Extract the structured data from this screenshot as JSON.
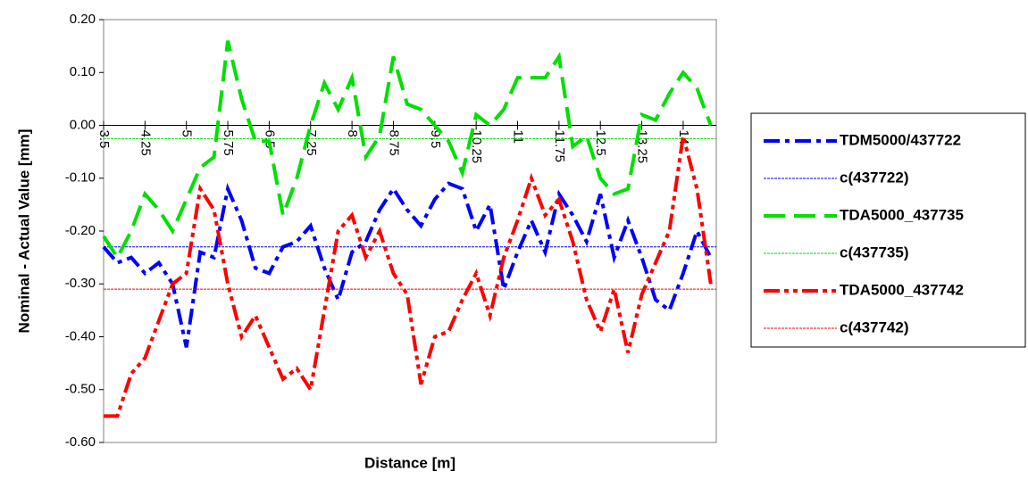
{
  "chart_data": {
    "type": "line",
    "y_label": "Nominal - Actual Value [mm]",
    "x_label": "Distance [m]",
    "x": [
      3.5,
      3.75,
      4.0,
      4.25,
      4.5,
      4.75,
      5.0,
      5.25,
      5.5,
      5.75,
      6.0,
      6.25,
      6.5,
      6.75,
      7.0,
      7.25,
      7.5,
      7.75,
      8.0,
      8.25,
      8.5,
      8.75,
      9.0,
      9.25,
      9.5,
      9.75,
      10.0,
      10.25,
      10.5,
      10.75,
      11.0,
      11.25,
      11.5,
      11.75,
      12.0,
      12.25,
      12.5,
      12.75,
      13.0,
      13.25,
      13.5,
      13.75,
      14.0,
      14.25,
      14.5
    ],
    "series": [
      {
        "name": "TDM5000/437722",
        "color": "#0000ff",
        "linestyle": "dashdot",
        "values": [
          -0.23,
          -0.26,
          -0.25,
          -0.28,
          -0.26,
          -0.3,
          -0.42,
          -0.24,
          -0.25,
          -0.12,
          -0.18,
          -0.27,
          -0.28,
          -0.23,
          -0.22,
          -0.19,
          -0.27,
          -0.33,
          -0.24,
          -0.22,
          -0.16,
          -0.12,
          -0.16,
          -0.19,
          -0.14,
          -0.11,
          -0.12,
          -0.2,
          -0.15,
          -0.31,
          -0.24,
          -0.18,
          -0.24,
          -0.13,
          -0.17,
          -0.22,
          -0.13,
          -0.25,
          -0.18,
          -0.25,
          -0.33,
          -0.35,
          -0.28,
          -0.2,
          -0.25
        ]
      },
      {
        "name": "c(437722)",
        "color": "#0000ff",
        "linestyle": "thin",
        "x": [
          3.5,
          14.6
        ],
        "values": [
          -0.23,
          -0.23
        ]
      },
      {
        "name": "TDA5000_437735",
        "color": "#00e000",
        "linestyle": "dashed",
        "values": [
          -0.21,
          -0.25,
          -0.2,
          -0.13,
          -0.16,
          -0.2,
          -0.14,
          -0.08,
          -0.06,
          0.16,
          0.05,
          -0.03,
          -0.03,
          -0.17,
          -0.1,
          0.0,
          0.08,
          0.03,
          0.09,
          -0.06,
          -0.02,
          0.13,
          0.04,
          0.03,
          0.0,
          -0.03,
          -0.09,
          0.02,
          0.0,
          0.03,
          0.09,
          0.09,
          0.09,
          0.13,
          -0.04,
          -0.02,
          -0.1,
          -0.13,
          -0.12,
          0.02,
          0.01,
          0.06,
          0.1,
          0.07,
          0.0
        ]
      },
      {
        "name": "c(437735)",
        "color": "#00e000",
        "linestyle": "thin",
        "x": [
          3.5,
          14.6
        ],
        "values": [
          -0.025,
          -0.025
        ]
      },
      {
        "name": "TDA5000_437742",
        "color": "#ff0000",
        "linestyle": "dashdotdot",
        "values": [
          -0.55,
          -0.55,
          -0.47,
          -0.44,
          -0.37,
          -0.3,
          -0.28,
          -0.12,
          -0.16,
          -0.3,
          -0.4,
          -0.36,
          -0.42,
          -0.48,
          -0.46,
          -0.5,
          -0.35,
          -0.2,
          -0.17,
          -0.25,
          -0.2,
          -0.28,
          -0.32,
          -0.49,
          -0.4,
          -0.39,
          -0.33,
          -0.28,
          -0.36,
          -0.25,
          -0.18,
          -0.1,
          -0.17,
          -0.14,
          -0.22,
          -0.33,
          -0.39,
          -0.31,
          -0.43,
          -0.32,
          -0.26,
          -0.2,
          -0.02,
          -0.12,
          -0.3
        ]
      },
      {
        "name": "c(437742)",
        "color": "#ff0000",
        "linestyle": "thin",
        "x": [
          3.5,
          14.6
        ],
        "values": [
          -0.31,
          -0.31
        ]
      }
    ],
    "xlim": [
      3.5,
      14.6
    ],
    "xticks": [
      3.5,
      4.25,
      5,
      5.75,
      6.5,
      7.25,
      8,
      8.75,
      9.5,
      10.25,
      11,
      11.75,
      12.5,
      13.25,
      14
    ],
    "ylim": [
      -0.6,
      0.2
    ],
    "yticks": [
      {
        "value": -0.6,
        "label": "-0.60"
      },
      {
        "value": -0.5,
        "label": "-0.50"
      },
      {
        "value": -0.4,
        "label": "-0.40"
      },
      {
        "value": -0.3,
        "label": "-0.30"
      },
      {
        "value": -0.2,
        "label": "-0.20"
      },
      {
        "value": -0.1,
        "label": "-0.10"
      },
      {
        "value": 0,
        "label": "0.00"
      },
      {
        "value": 0.1,
        "label": "0.10"
      },
      {
        "value": 0.2,
        "label": "0.20"
      }
    ],
    "legend": "right"
  }
}
